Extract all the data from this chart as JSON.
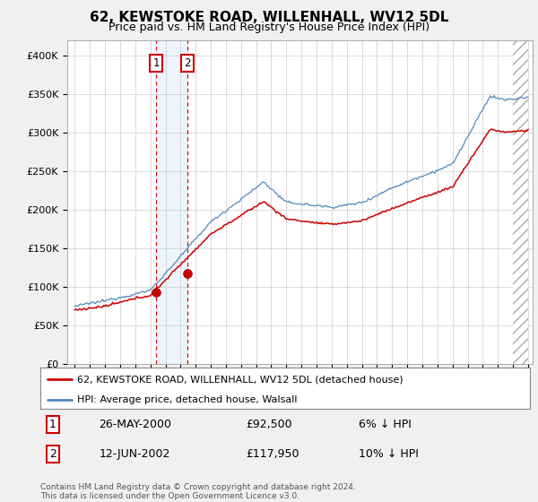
{
  "title": "62, KEWSTOKE ROAD, WILLENHALL, WV12 5DL",
  "subtitle": "Price paid vs. HM Land Registry's House Price Index (HPI)",
  "sale1_date": "26-MAY-2000",
  "sale1_price": 92500,
  "sale1_label": "6% ↓ HPI",
  "sale2_date": "12-JUN-2002",
  "sale2_price": 117950,
  "sale2_label": "10% ↓ HPI",
  "legend_line1": "62, KEWSTOKE ROAD, WILLENHALL, WV12 5DL (detached house)",
  "legend_line2": "HPI: Average price, detached house, Walsall",
  "footer": "Contains HM Land Registry data © Crown copyright and database right 2024.\nThis data is licensed under the Open Government Licence v3.0.",
  "line_color_red": "#cc0000",
  "line_color_blue": "#5588bb",
  "background_color": "#f0f0f0",
  "plot_bg_color": "#ffffff",
  "ylim_min": 0,
  "ylim_max": 420000,
  "yticks": [
    0,
    50000,
    100000,
    150000,
    200000,
    250000,
    300000,
    350000,
    400000
  ],
  "ytick_labels": [
    "£0",
    "£50K",
    "£100K",
    "£150K",
    "£200K",
    "£250K",
    "£300K",
    "£350K",
    "£400K"
  ],
  "sale1_x": 2000.38,
  "sale2_x": 2002.45,
  "vline1_x": 2000.38,
  "vline2_x": 2002.45,
  "xmin": 1995.0,
  "xmax": 2025.0,
  "hatch_start": 2024.0
}
